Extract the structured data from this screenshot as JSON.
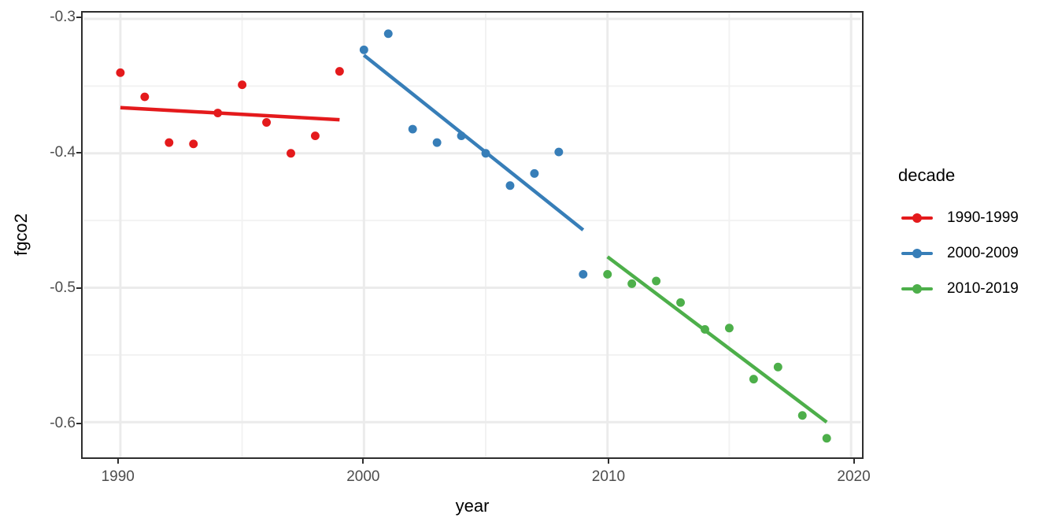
{
  "style": {
    "background": "#FFFFFF",
    "panel_border_color": "#2E2E2E",
    "grid_major_color": "#EBEBEB",
    "grid_minor_color": "#F2F2F2",
    "tick_color": "#2E2E2E",
    "tick_label_color": "#4D4D4D",
    "axis_title_color": "#000000",
    "point_radius": 5.5,
    "trend_line_width": 4.5
  },
  "legend": {
    "title": "decade",
    "entries": [
      {
        "label": "1990-1999",
        "color": "#E41A1C"
      },
      {
        "label": "2000-2009",
        "color": "#377EB8"
      },
      {
        "label": "2010-2019",
        "color": "#4DAF4A"
      }
    ]
  },
  "chart_data": {
    "type": "scatter",
    "title": "",
    "xlabel": "year",
    "ylabel": "fgco2",
    "xlim": [
      1988.5,
      2020.4
    ],
    "ylim": [
      -0.6262,
      -0.2953
    ],
    "grid": true,
    "legend_position": "right",
    "legend_title": "decade",
    "x_ticks": [
      1990,
      2000,
      2010,
      2020
    ],
    "x_tick_labels": [
      "1990",
      "2000",
      "2010",
      "2020"
    ],
    "x_minor_ticks": [
      1995,
      2005,
      2015
    ],
    "y_ticks": [
      -0.3,
      -0.4,
      -0.5,
      -0.6
    ],
    "y_tick_labels": [
      "-0.3",
      "-0.4",
      "-0.5",
      "-0.6"
    ],
    "y_minor_ticks": [
      -0.35,
      -0.45,
      -0.55
    ],
    "series": [
      {
        "name": "1990-1999",
        "color": "#E41A1C",
        "x": [
          1990,
          1991,
          1992,
          1993,
          1994,
          1995,
          1996,
          1997,
          1998,
          1999
        ],
        "y": [
          -0.34,
          -0.358,
          -0.392,
          -0.393,
          -0.37,
          -0.349,
          -0.377,
          -0.4,
          -0.387,
          -0.339
        ],
        "trend": {
          "x": [
            1990,
            1999
          ],
          "y": [
            -0.366,
            -0.375
          ]
        }
      },
      {
        "name": "2000-2009",
        "color": "#377EB8",
        "x": [
          2000,
          2001,
          2002,
          2003,
          2004,
          2005,
          2006,
          2007,
          2008,
          2009
        ],
        "y": [
          -0.323,
          -0.311,
          -0.382,
          -0.392,
          -0.387,
          -0.4,
          -0.424,
          -0.415,
          -0.399,
          -0.49
        ],
        "trend": {
          "x": [
            2000,
            2009
          ],
          "y": [
            -0.327,
            -0.457
          ]
        }
      },
      {
        "name": "2010-2019",
        "color": "#4DAF4A",
        "x": [
          2010,
          2011,
          2012,
          2013,
          2014,
          2015,
          2016,
          2017,
          2018,
          2019
        ],
        "y": [
          -0.49,
          -0.497,
          -0.495,
          -0.511,
          -0.531,
          -0.53,
          -0.568,
          -0.559,
          -0.595,
          -0.612
        ],
        "trend": {
          "x": [
            2010,
            2019
          ],
          "y": [
            -0.477,
            -0.6
          ]
        }
      }
    ]
  }
}
